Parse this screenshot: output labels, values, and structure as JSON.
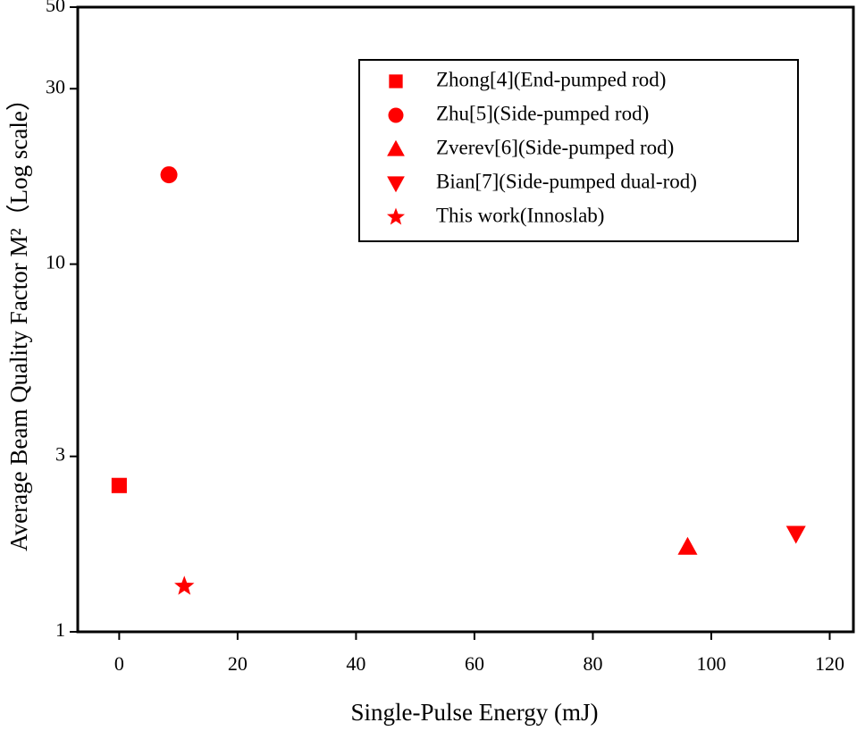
{
  "chart_data": {
    "type": "scatter",
    "x_label": "Single-Pulse Energy (mJ)",
    "y_label": "Average Beam Quality Factor M²（Log scale）",
    "xlim": [
      -7,
      124
    ],
    "xticks": [
      0,
      20,
      40,
      60,
      80,
      100,
      120
    ],
    "ylim": [
      1,
      50
    ],
    "yticks": [
      1,
      3,
      10,
      30,
      50
    ],
    "y_log": true,
    "legend": "upper right",
    "color": "#ff0000",
    "series": [
      {
        "name": "Zhong[4](End-pumped rod)",
        "marker": "square",
        "x": [
          0
        ],
        "y": [
          2.5
        ]
      },
      {
        "name": "Zhu[5](Side-pumped rod)",
        "marker": "circle",
        "x": [
          8.4
        ],
        "y": [
          17.5
        ]
      },
      {
        "name": "Zverev[6](Side-pumped rod)",
        "marker": "triangle-up",
        "x": [
          96
        ],
        "y": [
          1.7
        ]
      },
      {
        "name": "Bian[7](Side-pumped dual-rod)",
        "marker": "triangle-down",
        "x": [
          114.3
        ],
        "y": [
          1.85
        ]
      },
      {
        "name": "This work(Innoslab)",
        "marker": "star",
        "x": [
          11
        ],
        "y": [
          1.33
        ]
      }
    ]
  }
}
